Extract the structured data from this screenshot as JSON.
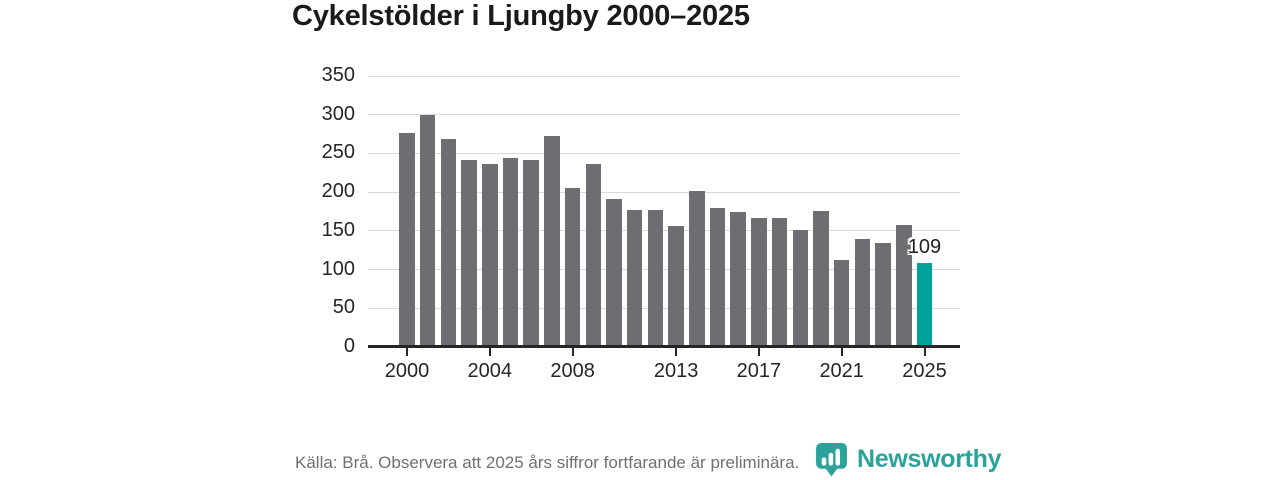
{
  "page": {
    "title": "Cykelstölder i Ljungby 2000–2025"
  },
  "footer": {
    "source_note": "Källa: Brå. Observera att 2025 års siffror fortfarande är preliminära."
  },
  "branding": {
    "logo_text": "Newsworthy",
    "logo_icon": "newsworthy-pin-bar-chart-icon",
    "logo_color": "#2ba39b"
  },
  "colors": {
    "bar": "#6d6d72",
    "highlight": "#00a39c",
    "grid": "#dadada",
    "axis": "#262626",
    "title_text": "#1a1a1a",
    "footer_text": "#707070"
  },
  "chart_data": {
    "type": "bar",
    "title": "Cykelstölder i Ljungby 2000–2025",
    "categories": [
      2000,
      2001,
      2002,
      2003,
      2004,
      2005,
      2006,
      2007,
      2008,
      2009,
      2010,
      2011,
      2012,
      2013,
      2014,
      2015,
      2016,
      2017,
      2018,
      2019,
      2020,
      2021,
      2022,
      2023,
      2024,
      2025
    ],
    "values": [
      277,
      300,
      269,
      241,
      237,
      244,
      242,
      272,
      206,
      237,
      191,
      177,
      177,
      156,
      202,
      179,
      174,
      166,
      166,
      151,
      176,
      113,
      139,
      134,
      158,
      109
    ],
    "highlight_index": 25,
    "highlight_label": "109",
    "bar_color": "#6d6d72",
    "highlight_color": "#00a39c",
    "xlabel": "",
    "ylabel": "",
    "ylim": [
      0,
      350
    ],
    "y_ticks": [
      0,
      50,
      100,
      150,
      200,
      250,
      300,
      350
    ],
    "x_tick_years": [
      2000,
      2004,
      2008,
      2013,
      2017,
      2021,
      2025
    ],
    "grid": true,
    "legend_position": "none"
  }
}
